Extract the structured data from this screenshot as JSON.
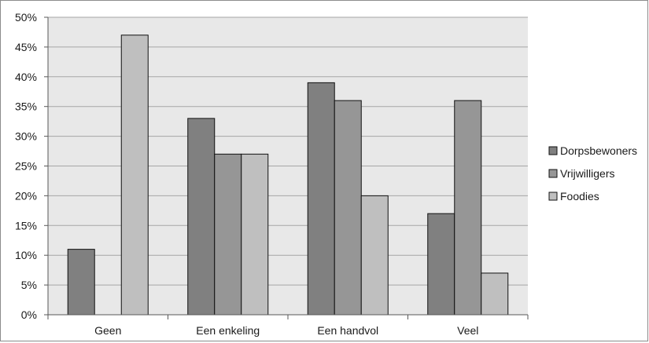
{
  "chart_data": {
    "type": "bar",
    "categories": [
      "Geen",
      "Een enkeling",
      "Een handvol",
      "Veel"
    ],
    "series": [
      {
        "name": "Dorpsbewoners",
        "values": [
          11,
          33,
          39,
          17
        ],
        "color": "#808080"
      },
      {
        "name": "Vrijwilligers",
        "values": [
          0,
          27,
          36,
          36
        ],
        "color": "#969696"
      },
      {
        "name": "Foodies",
        "values": [
          47,
          27,
          20,
          7
        ],
        "color": "#bfbfbf"
      }
    ],
    "y_ticks": [
      "0%",
      "5%",
      "10%",
      "15%",
      "20%",
      "25%",
      "30%",
      "35%",
      "40%",
      "45%",
      "50%"
    ],
    "ylim": [
      0,
      50
    ],
    "y_unit": "%",
    "grid": true,
    "plot_background": "#e8e8e8",
    "gridline_color": "#a6a6a6",
    "legend_position": "right"
  }
}
